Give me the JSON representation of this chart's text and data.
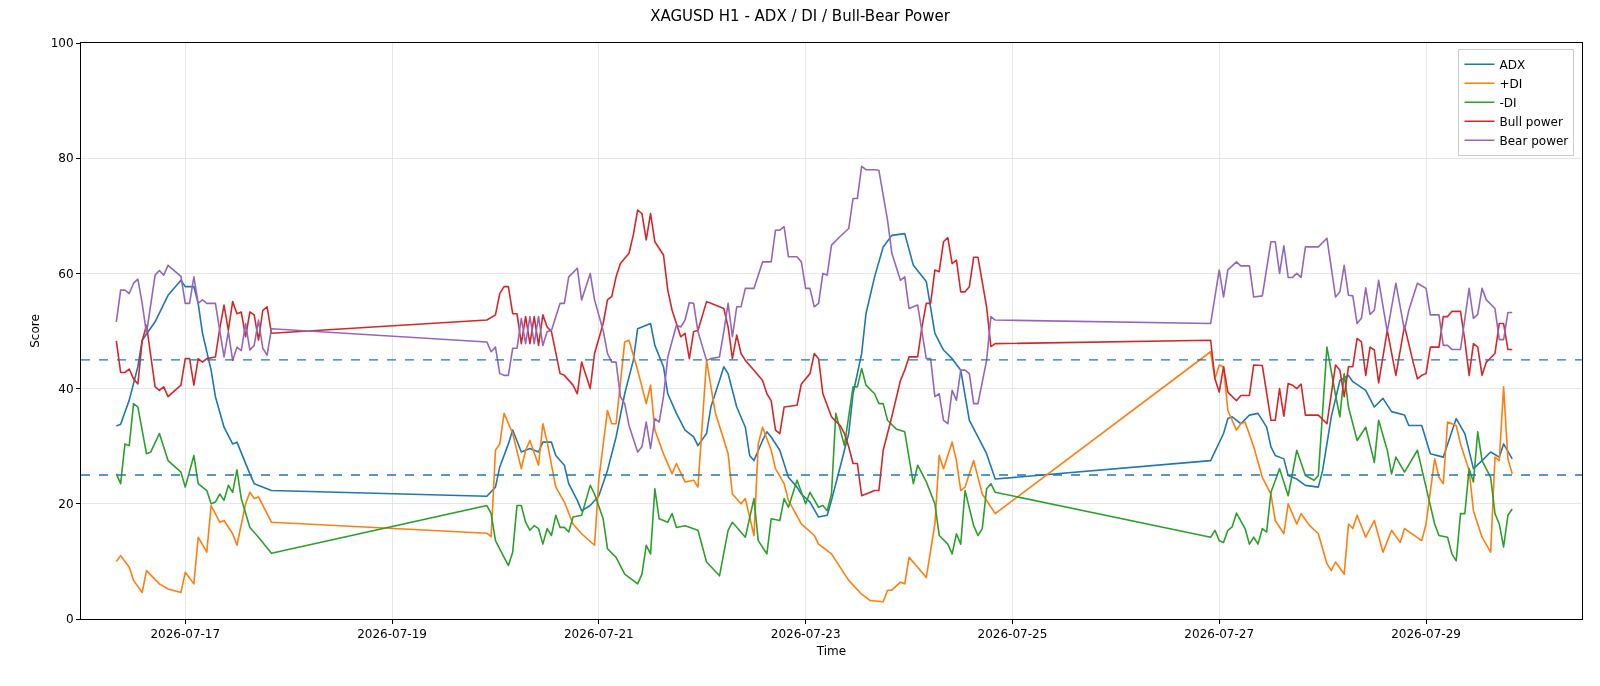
{
  "chart_data": {
    "type": "line",
    "title": "XAGUSD H1 - ADX / DI / Bull-Bear Power",
    "xlabel": "Time",
    "ylabel": "Score",
    "xlim": [
      "2026-07-15T23:48",
      "2026-07-30T12:12"
    ],
    "xticks": [
      "2026-07-17",
      "2026-07-19",
      "2026-07-21",
      "2026-07-23",
      "2026-07-25",
      "2026-07-27",
      "2026-07-29"
    ],
    "ylim": [
      0,
      100
    ],
    "yticks": [
      0,
      20,
      40,
      60,
      80,
      100
    ],
    "grid": true,
    "legend": "top right",
    "ref_lines": [
      {
        "axis": "y",
        "value": 45,
        "color": "#1f77b4",
        "line_style": "dashed"
      },
      {
        "axis": "y",
        "value": 25,
        "color": "#1f77b4",
        "line_style": "dashed"
      }
    ],
    "series": [
      {
        "name": "ADX",
        "color": "#1f77b4",
        "x": [
          "2026-07-16T08:00",
          "2026-07-16T09:00",
          "2026-07-16T11:00",
          "2026-07-16T13:00",
          "2026-07-16T14:00",
          "2026-07-16T17:00",
          "2026-07-16T20:00",
          "2026-07-16T23:00",
          "2026-07-17T00:00",
          "2026-07-17T02:00",
          "2026-07-17T03:00",
          "2026-07-17T04:00",
          "2026-07-17T06:00",
          "2026-07-17T07:00",
          "2026-07-17T09:00",
          "2026-07-17T11:00",
          "2026-07-17T12:00",
          "2026-07-17T15:00",
          "2026-07-17T16:00",
          "2026-07-17T20:00",
          "2026-07-19T22:00",
          "2026-07-20T00:00",
          "2026-07-20T01:00",
          "2026-07-20T03:00",
          "2026-07-20T04:00",
          "2026-07-20T06:00",
          "2026-07-20T08:00",
          "2026-07-20T10:00",
          "2026-07-20T11:00",
          "2026-07-20T13:00",
          "2026-07-20T14:00",
          "2026-07-20T16:00",
          "2026-07-20T17:00",
          "2026-07-20T19:00",
          "2026-07-20T20:00",
          "2026-07-20T22:00",
          "2026-07-21T00:00",
          "2026-07-21T02:00",
          "2026-07-21T04:00",
          "2026-07-21T06:00",
          "2026-07-21T08:00",
          "2026-07-21T09:00",
          "2026-07-21T11:00",
          "2026-07-21T12:00",
          "2026-07-21T13:00",
          "2026-07-21T15:00",
          "2026-07-21T16:00",
          "2026-07-21T18:00",
          "2026-07-21T20:00",
          "2026-07-21T22:00",
          "2026-07-21T23:00",
          "2026-07-22T01:00",
          "2026-07-22T02:00",
          "2026-07-22T04:00",
          "2026-07-22T05:00",
          "2026-07-22T06:00",
          "2026-07-22T08:00",
          "2026-07-22T10:00",
          "2026-07-22T11:00",
          "2026-07-22T12:00",
          "2026-07-22T14:00",
          "2026-07-22T15:00",
          "2026-07-22T16:00",
          "2026-07-22T18:00",
          "2026-07-22T20:00",
          "2026-07-22T22:00",
          "2026-07-22T23:00",
          "2026-07-23T01:00",
          "2026-07-23T03:00",
          "2026-07-23T05:00",
          "2026-07-23T06:00",
          "2026-07-23T08:00",
          "2026-07-23T10:00",
          "2026-07-23T11:00",
          "2026-07-23T13:00",
          "2026-07-23T14:00",
          "2026-07-23T16:00",
          "2026-07-23T18:00",
          "2026-07-23T20:00",
          "2026-07-23T23:00",
          "2026-07-24T01:00",
          "2026-07-24T04:00",
          "2026-07-24T06:00",
          "2026-07-24T08:00",
          "2026-07-24T10:00",
          "2026-07-24T12:00",
          "2026-07-24T14:00",
          "2026-07-24T16:00",
          "2026-07-24T18:00",
          "2026-07-24T20:00",
          "2026-07-26T22:00",
          "2026-07-27T01:00",
          "2026-07-27T02:00",
          "2026-07-27T03:00",
          "2026-07-27T05:00",
          "2026-07-27T07:00",
          "2026-07-27T09:00",
          "2026-07-27T11:00",
          "2026-07-27T12:00",
          "2026-07-27T13:00",
          "2026-07-27T15:00",
          "2026-07-27T16:00",
          "2026-07-27T18:00",
          "2026-07-27T20:00",
          "2026-07-27T23:00",
          "2026-07-28T00:00",
          "2026-07-28T02:00",
          "2026-07-28T04:00",
          "2026-07-28T06:00",
          "2026-07-28T07:00",
          "2026-07-28T10:00",
          "2026-07-28T12:00",
          "2026-07-28T14:00",
          "2026-07-28T16:00",
          "2026-07-28T19:00",
          "2026-07-28T20:00",
          "2026-07-28T23:00",
          "2026-07-29T01:00",
          "2026-07-29T04:00",
          "2026-07-29T07:00",
          "2026-07-29T09:00",
          "2026-07-29T11:00",
          "2026-07-29T13:00",
          "2026-07-29T15:00",
          "2026-07-29T17:00",
          "2026-07-29T18:00",
          "2026-07-29T20:00"
        ],
        "values": [
          33.5,
          33.8,
          38.0,
          43.8,
          48.4,
          51.6,
          56.2,
          58.8,
          57.7,
          57.7,
          54.8,
          49.6,
          43.2,
          38.6,
          33.3,
          30.4,
          30.7,
          25.2,
          23.5,
          22.3,
          21.3,
          22.9,
          26.4,
          30.4,
          32.8,
          29.0,
          29.6,
          29.0,
          30.7,
          30.7,
          28.4,
          26.7,
          23.5,
          20.6,
          18.8,
          19.7,
          21.4,
          25.8,
          31.6,
          39.1,
          44.9,
          50.4,
          51.0,
          51.3,
          47.5,
          43.8,
          39.1,
          35.7,
          32.8,
          31.6,
          30.1,
          32.2,
          36.8,
          41.4,
          43.8,
          42.6,
          36.8,
          33.3,
          28.4,
          27.5,
          31.0,
          32.5,
          31.6,
          29.3,
          24.6,
          22.9,
          21.7,
          20.3,
          17.7,
          18.0,
          20.6,
          26.4,
          32.2,
          39.1,
          46.1,
          53.0,
          59.4,
          64.6,
          66.6,
          66.9,
          61.4,
          58.6,
          49.6,
          46.7,
          45.2,
          43.2,
          34.5,
          31.6,
          28.7,
          24.3,
          27.5,
          32.2,
          34.8,
          35.1,
          33.9,
          35.4,
          35.7,
          33.3,
          29.9,
          28.4,
          27.8,
          24.9,
          24.3,
          23.2,
          22.9,
          25.8,
          35.1,
          41.4,
          42.3,
          41.2,
          39.7,
          36.8,
          38.3,
          36.0,
          35.4,
          33.6,
          33.6,
          28.7,
          28.1,
          34.8,
          32.2,
          26.1,
          27.5,
          29.0,
          28.1,
          30.4,
          27.8
        ]
      },
      {
        "name": "+DI",
        "color": "#ff7f0e",
        "x": [
          "2026-07-16T08:00",
          "2026-07-16T09:00",
          "2026-07-16T11:00",
          "2026-07-16T12:00",
          "2026-07-16T14:00",
          "2026-07-16T15:00",
          "2026-07-16T18:00",
          "2026-07-16T20:00",
          "2026-07-16T23:00",
          "2026-07-17T00:00",
          "2026-07-17T02:00",
          "2026-07-17T03:00",
          "2026-07-17T05:00",
          "2026-07-17T06:00",
          "2026-07-17T08:00",
          "2026-07-17T09:00",
          "2026-07-17T11:00",
          "2026-07-17T12:00",
          "2026-07-17T14:00",
          "2026-07-17T15:00",
          "2026-07-17T16:00",
          "2026-07-17T17:00",
          "2026-07-17T20:00",
          "2026-07-19T22:00",
          "2026-07-19T23:00",
          "2026-07-20T00:00",
          "2026-07-20T01:00",
          "2026-07-20T02:00",
          "2026-07-20T04:00",
          "2026-07-20T06:00",
          "2026-07-20T07:00",
          "2026-07-20T08:00",
          "2026-07-20T10:00",
          "2026-07-20T11:00",
          "2026-07-20T12:00",
          "2026-07-20T14:00",
          "2026-07-20T16:00",
          "2026-07-20T18:00",
          "2026-07-20T20:00",
          "2026-07-20T23:00",
          "2026-07-21T00:00",
          "2026-07-21T02:00",
          "2026-07-21T03:00",
          "2026-07-21T04:00",
          "2026-07-21T06:00",
          "2026-07-21T07:00",
          "2026-07-21T09:00",
          "2026-07-21T11:00",
          "2026-07-21T12:00",
          "2026-07-21T13:00",
          "2026-07-21T15:00",
          "2026-07-21T17:00",
          "2026-07-21T18:00",
          "2026-07-21T20:00",
          "2026-07-21T22:00",
          "2026-07-21T23:00",
          "2026-07-22T01:00",
          "2026-07-22T03:00",
          "2026-07-22T06:00",
          "2026-07-22T07:00",
          "2026-07-22T09:00",
          "2026-07-22T10:00",
          "2026-07-22T12:00",
          "2026-07-22T13:00",
          "2026-07-22T14:00",
          "2026-07-22T16:00",
          "2026-07-22T17:00",
          "2026-07-22T19:00",
          "2026-07-22T20:00",
          "2026-07-22T23:00",
          "2026-07-23T02:00",
          "2026-07-23T03:00",
          "2026-07-23T06:00",
          "2026-07-23T08:00",
          "2026-07-23T10:00",
          "2026-07-23T13:00",
          "2026-07-23T15:00",
          "2026-07-23T18:00",
          "2026-07-23T19:00",
          "2026-07-23T20:00",
          "2026-07-23T22:00",
          "2026-07-23T23:00",
          "2026-07-24T00:00",
          "2026-07-24T02:00",
          "2026-07-24T04:00",
          "2026-07-24T06:00",
          "2026-07-24T07:00",
          "2026-07-24T08:00",
          "2026-07-24T10:00",
          "2026-07-24T11:00",
          "2026-07-24T12:00",
          "2026-07-24T13:00",
          "2026-07-24T15:00",
          "2026-07-24T17:00",
          "2026-07-24T20:00",
          "2026-07-26T22:00",
          "2026-07-26T23:00",
          "2026-07-27T00:00",
          "2026-07-27T01:00",
          "2026-07-27T02:00",
          "2026-07-27T04:00",
          "2026-07-27T05:00",
          "2026-07-27T06:00",
          "2026-07-27T08:00",
          "2026-07-27T10:00",
          "2026-07-27T12:00",
          "2026-07-27T13:00",
          "2026-07-27T15:00",
          "2026-07-27T16:00",
          "2026-07-27T18:00",
          "2026-07-27T19:00",
          "2026-07-27T21:00",
          "2026-07-27T23:00",
          "2026-07-28T01:00",
          "2026-07-28T02:00",
          "2026-07-28T03:00",
          "2026-07-28T05:00",
          "2026-07-28T06:00",
          "2026-07-28T07:00",
          "2026-07-28T08:00",
          "2026-07-28T10:00",
          "2026-07-28T12:00",
          "2026-07-28T14:00",
          "2026-07-28T16:00",
          "2026-07-28T18:00",
          "2026-07-28T19:00",
          "2026-07-28T23:00",
          "2026-07-29T00:00",
          "2026-07-29T02:00",
          "2026-07-29T03:00",
          "2026-07-29T04:00",
          "2026-07-29T05:00",
          "2026-07-29T07:00",
          "2026-07-29T08:00",
          "2026-07-29T10:00",
          "2026-07-29T11:00",
          "2026-07-29T13:00",
          "2026-07-29T15:00",
          "2026-07-29T16:00",
          "2026-07-29T17:00",
          "2026-07-29T18:00",
          "2026-07-29T19:00",
          "2026-07-29T20:00"
        ],
        "values": [
          10.0,
          11.0,
          9.0,
          6.7,
          4.6,
          8.4,
          6.1,
          5.2,
          4.6,
          8.1,
          6.1,
          14.2,
          11.6,
          19.7,
          16.8,
          17.1,
          14.8,
          12.8,
          20.0,
          22.0,
          20.9,
          21.2,
          16.8,
          14.9,
          14.3,
          29.3,
          30.4,
          35.7,
          32.2,
          26.1,
          29.3,
          31.0,
          26.7,
          33.9,
          30.7,
          22.9,
          20.3,
          16.5,
          14.8,
          12.8,
          24.3,
          36.2,
          33.9,
          33.9,
          48.1,
          48.4,
          43.2,
          37.4,
          40.6,
          32.8,
          28.7,
          25.2,
          27.0,
          23.8,
          24.1,
          22.9,
          44.9,
          35.9,
          28.7,
          21.7,
          20.0,
          20.9,
          14.5,
          30.4,
          33.3,
          29.3,
          26.1,
          23.5,
          20.6,
          16.5,
          14.5,
          13.0,
          11.3,
          9.0,
          6.7,
          4.3,
          3.2,
          3.0,
          5.0,
          5.0,
          6.4,
          6.1,
          10.7,
          9.0,
          7.2,
          16.5,
          28.4,
          26.1,
          30.7,
          27.5,
          22.3,
          22.9,
          27.5,
          21.7,
          18.3,
          46.4,
          41.7,
          44.1,
          43.8,
          36.2,
          32.8,
          33.9,
          34.2,
          29.9,
          24.6,
          21.7,
          17.1,
          14.8,
          20.0,
          16.5,
          18.3,
          16.2,
          14.8,
          9.6,
          8.4,
          9.9,
          7.8,
          16.5,
          15.7,
          18.0,
          14.2,
          17.1,
          11.6,
          15.4,
          13.3,
          15.7,
          13.6,
          16.5,
          27.8,
          24.6,
          23.5,
          34.2,
          33.6,
          30.4,
          25.8,
          18.8,
          14.2,
          11.6,
          28.1,
          27.5,
          40.3,
          27.8,
          25.2
        ]
      },
      {
        "name": "-DI",
        "color": "#2ca02c",
        "x": [
          "2026-07-16T08:00",
          "2026-07-16T09:00",
          "2026-07-16T10:00",
          "2026-07-16T11:00",
          "2026-07-16T12:00",
          "2026-07-16T13:00",
          "2026-07-16T15:00",
          "2026-07-16T16:00",
          "2026-07-16T18:00",
          "2026-07-16T20:00",
          "2026-07-16T23:00",
          "2026-07-17T00:00",
          "2026-07-17T02:00",
          "2026-07-17T03:00",
          "2026-07-17T05:00",
          "2026-07-17T06:00",
          "2026-07-17T07:00",
          "2026-07-17T08:00",
          "2026-07-17T09:00",
          "2026-07-17T10:00",
          "2026-07-17T11:00",
          "2026-07-17T12:00",
          "2026-07-17T13:00",
          "2026-07-17T15:00",
          "2026-07-17T17:00",
          "2026-07-17T20:00",
          "2026-07-19T22:00",
          "2026-07-19T23:00",
          "2026-07-20T00:00",
          "2026-07-20T02:00",
          "2026-07-20T03:00",
          "2026-07-20T04:00",
          "2026-07-20T05:00",
          "2026-07-20T06:00",
          "2026-07-20T07:00",
          "2026-07-20T08:00",
          "2026-07-20T09:00",
          "2026-07-20T10:00",
          "2026-07-20T11:00",
          "2026-07-20T12:00",
          "2026-07-20T13:00",
          "2026-07-20T14:00",
          "2026-07-20T15:00",
          "2026-07-20T16:00",
          "2026-07-20T17:00",
          "2026-07-20T18:00",
          "2026-07-20T20:00",
          "2026-07-20T22:00",
          "2026-07-20T23:00",
          "2026-07-21T01:00",
          "2026-07-21T02:00",
          "2026-07-21T04:00",
          "2026-07-21T06:00",
          "2026-07-21T09:00",
          "2026-07-21T10:00",
          "2026-07-21T11:00",
          "2026-07-21T12:00",
          "2026-07-21T13:00",
          "2026-07-21T14:00",
          "2026-07-21T16:00",
          "2026-07-21T17:00",
          "2026-07-21T18:00",
          "2026-07-21T20:00",
          "2026-07-21T23:00",
          "2026-07-22T01:00",
          "2026-07-22T04:00",
          "2026-07-22T06:00",
          "2026-07-22T07:00",
          "2026-07-22T10:00",
          "2026-07-22T12:00",
          "2026-07-22T13:00",
          "2026-07-22T15:00",
          "2026-07-22T16:00",
          "2026-07-22T18:00",
          "2026-07-22T19:00",
          "2026-07-22T20:00",
          "2026-07-22T22:00",
          "2026-07-23T00:00",
          "2026-07-23T01:00",
          "2026-07-23T03:00",
          "2026-07-23T04:00",
          "2026-07-23T05:00",
          "2026-07-23T06:00",
          "2026-07-23T07:00",
          "2026-07-23T09:00",
          "2026-07-23T11:00",
          "2026-07-23T12:00",
          "2026-07-23T13:00",
          "2026-07-23T14:00",
          "2026-07-23T16:00",
          "2026-07-23T17:00",
          "2026-07-23T18:00",
          "2026-07-23T19:00",
          "2026-07-23T21:00",
          "2026-07-23T23:00",
          "2026-07-24T01:00",
          "2026-07-24T02:00",
          "2026-07-24T04:00",
          "2026-07-24T06:00",
          "2026-07-24T07:00",
          "2026-07-24T09:00",
          "2026-07-24T10:00",
          "2026-07-24T11:00",
          "2026-07-24T12:00",
          "2026-07-24T13:00",
          "2026-07-24T15:00",
          "2026-07-24T16:00",
          "2026-07-24T17:00",
          "2026-07-24T18:00",
          "2026-07-24T19:00",
          "2026-07-24T20:00",
          "2026-07-26T22:00",
          "2026-07-26T23:00",
          "2026-07-27T00:00",
          "2026-07-27T01:00",
          "2026-07-27T02:00",
          "2026-07-27T03:00",
          "2026-07-27T04:00",
          "2026-07-27T06:00",
          "2026-07-27T07:00",
          "2026-07-27T08:00",
          "2026-07-27T09:00",
          "2026-07-27T10:00",
          "2026-07-27T11:00",
          "2026-07-27T12:00",
          "2026-07-27T14:00",
          "2026-07-27T16:00",
          "2026-07-27T18:00",
          "2026-07-27T20:00",
          "2026-07-27T22:00",
          "2026-07-27T23:00",
          "2026-07-28T01:00",
          "2026-07-28T03:00",
          "2026-07-28T04:00",
          "2026-07-28T05:00",
          "2026-07-28T06:00",
          "2026-07-28T08:00",
          "2026-07-28T10:00",
          "2026-07-28T12:00",
          "2026-07-28T13:00",
          "2026-07-28T15:00",
          "2026-07-28T16:00",
          "2026-07-28T17:00",
          "2026-07-28T19:00",
          "2026-07-28T22:00",
          "2026-07-29T00:00",
          "2026-07-29T02:00",
          "2026-07-29T03:00",
          "2026-07-29T05:00",
          "2026-07-29T06:00",
          "2026-07-29T07:00",
          "2026-07-29T08:00",
          "2026-07-29T09:00",
          "2026-07-29T10:00",
          "2026-07-29T11:00",
          "2026-07-29T12:00",
          "2026-07-29T13:00",
          "2026-07-29T15:00",
          "2026-07-29T16:00",
          "2026-07-29T17:00",
          "2026-07-29T18:00",
          "2026-07-29T19:00",
          "2026-07-29T20:00"
        ],
        "values": [
          25.2,
          23.5,
          30.4,
          30.1,
          37.4,
          36.8,
          28.7,
          29.0,
          32.2,
          27.5,
          25.5,
          22.9,
          28.4,
          23.5,
          22.3,
          20.0,
          20.3,
          21.7,
          20.6,
          23.2,
          22.0,
          25.9,
          20.9,
          15.9,
          14.2,
          11.4,
          19.7,
          18.3,
          13.6,
          10.7,
          9.3,
          11.6,
          19.7,
          19.7,
          16.8,
          15.4,
          16.2,
          15.7,
          13.0,
          15.7,
          14.5,
          18.0,
          15.9,
          15.9,
          15.1,
          17.7,
          18.0,
          23.2,
          21.7,
          17.4,
          12.2,
          10.7,
          7.8,
          6.1,
          7.8,
          12.8,
          11.3,
          22.6,
          17.4,
          16.8,
          18.3,
          15.9,
          16.2,
          15.4,
          9.9,
          7.5,
          15.4,
          16.8,
          14.2,
          20.9,
          13.6,
          11.3,
          17.4,
          17.1,
          20.9,
          19.4,
          24.1,
          20.0,
          22.0,
          19.4,
          19.7,
          18.8,
          21.7,
          35.7,
          30.1,
          40.3,
          40.3,
          43.5,
          40.6,
          39.1,
          37.4,
          37.4,
          34.5,
          33.0,
          32.5,
          23.5,
          26.7,
          23.8,
          20.0,
          14.5,
          13.0,
          11.3,
          14.8,
          13.0,
          22.3,
          16.2,
          14.5,
          15.7,
          22.6,
          23.5,
          22.0,
          14.2,
          15.4,
          13.6,
          13.3,
          15.4,
          16.0,
          18.4,
          15.7,
          13.0,
          14.2,
          13.0,
          15.7,
          15.1,
          22.0,
          26.1,
          21.4,
          29.3,
          24.9,
          24.1,
          24.9,
          47.2,
          38.8,
          35.1,
          42.6,
          36.8,
          31.0,
          33.3,
          27.2,
          34.5,
          29.3,
          25.2,
          28.1,
          25.5,
          29.3,
          22.9,
          16.5,
          14.5,
          14.2,
          11.3,
          10.1,
          18.3,
          18.3,
          26.1,
          23.8,
          32.5,
          27.5,
          24.6,
          18.3,
          16.5,
          12.5,
          18.0,
          19.1
        ]
      },
      {
        "name": "Bull power",
        "color": "#d62728",
        "x": [
          "2026-07-16T08:00",
          "2026-07-16T09:00",
          "2026-07-16T10:00",
          "2026-07-16T11:00",
          "2026-07-16T12:00",
          "2026-07-16T13:00",
          "2026-07-16T14:00",
          "2026-07-16T15:00",
          "2026-07-16T17:00",
          "2026-07-16T18:00",
          "2026-07-16T19:00",
          "2026-07-16T20:00",
          "2026-07-16T23:00",
          "2026-07-17T00:00",
          "2026-07-17T01:00",
          "2026-07-17T02:00",
          "2026-07-17T03:00",
          "2026-07-17T04:00",
          "2026-07-17T05:00",
          "2026-07-17T07:00",
          "2026-07-17T08:00",
          "2026-07-17T09:00",
          "2026-07-17T10:00",
          "2026-07-17T11:00",
          "2026-07-17T12:00",
          "2026-07-17T13:00",
          "2026-07-17T14:00",
          "2026-07-17T15:00",
          "2026-07-17T16:00",
          "2026-07-17T17:00",
          "2026-07-17T18:00",
          "2026-07-17T19:00",
          "2026-07-17T20:00",
          "2026-07-19T22:00",
          "2026-07-20T00:00",
          "2026-07-20T01:00",
          "2026-07-20T02:00",
          "2026-07-20T03:00",
          "2026-07-20T04:00",
          "2026-07-20T05:00",
          "2026-07-20T06:00",
          "2026-07-20T07:00",
          "2026-07-20T08:00",
          "2026-07-20T09:00",
          "2026-07-20T10:00",
          "2026-07-20T11:00",
          "2026-07-20T12:00",
          "2026-07-20T13:00",
          "2026-07-20T15:00",
          "2026-07-20T16:00",
          "2026-07-20T18:00",
          "2026-07-20T19:00",
          "2026-07-20T20:00",
          "2026-07-20T22:00",
          "2026-07-20T23:00",
          "2026-07-21T01:00",
          "2026-07-21T02:00",
          "2026-07-21T03:00",
          "2026-07-21T04:00",
          "2026-07-21T05:00",
          "2026-07-21T07:00",
          "2026-07-21T08:00",
          "2026-07-21T09:00",
          "2026-07-21T10:00",
          "2026-07-21T11:00",
          "2026-07-21T12:00",
          "2026-07-21T13:00",
          "2026-07-21T15:00",
          "2026-07-21T16:00",
          "2026-07-21T17:00",
          "2026-07-21T19:00",
          "2026-07-21T20:00",
          "2026-07-21T21:00",
          "2026-07-21T22:00",
          "2026-07-21T23:00",
          "2026-07-22T01:00",
          "2026-07-22T02:00",
          "2026-07-22T04:00",
          "2026-07-22T05:00",
          "2026-07-22T06:00",
          "2026-07-22T07:00",
          "2026-07-22T08:00",
          "2026-07-22T09:00",
          "2026-07-22T10:00",
          "2026-07-22T12:00",
          "2026-07-22T14:00",
          "2026-07-22T15:00",
          "2026-07-22T16:00",
          "2026-07-22T17:00",
          "2026-07-22T18:00",
          "2026-07-22T19:00",
          "2026-07-22T22:00",
          "2026-07-22T23:00",
          "2026-07-23T01:00",
          "2026-07-23T02:00",
          "2026-07-23T03:00",
          "2026-07-23T04:00",
          "2026-07-23T06:00",
          "2026-07-23T08:00",
          "2026-07-23T09:00",
          "2026-07-23T10:00",
          "2026-07-23T11:00",
          "2026-07-23T12:00",
          "2026-07-23T13:00",
          "2026-07-23T16:00",
          "2026-07-23T17:00",
          "2026-07-23T18:00",
          "2026-07-23T20:00",
          "2026-07-23T22:00",
          "2026-07-23T23:00",
          "2026-07-24T00:00",
          "2026-07-24T02:00",
          "2026-07-24T03:00",
          "2026-07-24T04:00",
          "2026-07-24T05:00",
          "2026-07-24T06:00",
          "2026-07-24T07:00",
          "2026-07-24T08:00",
          "2026-07-24T09:00",
          "2026-07-24T10:00",
          "2026-07-24T11:00",
          "2026-07-24T12:00",
          "2026-07-24T13:00",
          "2026-07-24T14:00",
          "2026-07-24T15:00",
          "2026-07-24T16:00",
          "2026-07-24T18:00",
          "2026-07-24T19:00",
          "2026-07-24T20:00",
          "2026-07-26T22:00",
          "2026-07-26T23:00",
          "2026-07-27T00:00",
          "2026-07-27T01:00",
          "2026-07-27T02:00",
          "2026-07-27T04:00",
          "2026-07-27T05:00",
          "2026-07-27T07:00",
          "2026-07-27T08:00",
          "2026-07-27T10:00",
          "2026-07-27T12:00",
          "2026-07-27T13:00",
          "2026-07-27T14:00",
          "2026-07-27T15:00",
          "2026-07-27T16:00",
          "2026-07-27T17:00",
          "2026-07-27T18:00",
          "2026-07-27T19:00",
          "2026-07-27T20:00",
          "2026-07-27T23:00",
          "2026-07-28T01:00",
          "2026-07-28T03:00",
          "2026-07-28T04:00",
          "2026-07-28T05:00",
          "2026-07-28T06:00",
          "2026-07-28T07:00",
          "2026-07-28T08:00",
          "2026-07-28T09:00",
          "2026-07-28T10:00",
          "2026-07-28T11:00",
          "2026-07-28T12:00",
          "2026-07-28T13:00",
          "2026-07-28T15:00",
          "2026-07-28T17:00",
          "2026-07-28T19:00",
          "2026-07-28T21:00",
          "2026-07-28T22:00",
          "2026-07-28T23:00",
          "2026-07-29T00:00",
          "2026-07-29T01:00",
          "2026-07-29T03:00",
          "2026-07-29T04:00",
          "2026-07-29T05:00",
          "2026-07-29T06:00",
          "2026-07-29T08:00",
          "2026-07-29T09:00",
          "2026-07-29T10:00",
          "2026-07-29T11:00",
          "2026-07-29T12:00",
          "2026-07-29T13:00",
          "2026-07-29T14:00",
          "2026-07-29T16:00",
          "2026-07-29T17:00",
          "2026-07-29T18:00",
          "2026-07-29T19:00",
          "2026-07-29T20:00"
        ],
        "values": [
          48.3,
          42.8,
          42.8,
          43.4,
          41.7,
          40.8,
          48.3,
          51.0,
          40.3,
          39.7,
          40.3,
          38.6,
          40.6,
          45.2,
          45.2,
          40.6,
          45.2,
          44.6,
          45.2,
          45.5,
          50.4,
          54.5,
          50.1,
          55.1,
          53.0,
          53.3,
          49.0,
          53.3,
          52.8,
          48.4,
          53.6,
          54.2,
          49.6,
          51.9,
          52.8,
          56.5,
          57.7,
          57.7,
          53.0,
          53.0,
          47.8,
          52.5,
          47.8,
          52.5,
          47.5,
          52.8,
          50.7,
          49.9,
          42.6,
          42.3,
          40.6,
          39.1,
          44.6,
          40.0,
          46.1,
          51.3,
          55.4,
          56.0,
          59.4,
          61.7,
          63.5,
          66.7,
          71.0,
          70.4,
          65.8,
          70.4,
          65.5,
          63.2,
          57.1,
          53.6,
          49.0,
          49.6,
          45.2,
          49.9,
          50.1,
          55.1,
          54.8,
          54.2,
          53.9,
          50.7,
          45.2,
          49.3,
          46.1,
          44.9,
          43.2,
          41.4,
          39.1,
          37.9,
          32.8,
          32.2,
          36.8,
          37.1,
          40.8,
          42.6,
          46.1,
          45.2,
          39.1,
          35.1,
          33.6,
          32.2,
          29.9,
          27.0,
          27.0,
          21.4,
          22.3,
          22.3,
          29.3,
          35.1,
          41.4,
          43.2,
          45.5,
          45.5,
          50.7,
          54.8,
          54.8,
          60.6,
          60.3,
          65.5,
          66.2,
          61.7,
          62.3,
          56.8,
          56.8,
          57.7,
          62.8,
          62.8,
          54.2,
          47.3,
          47.8,
          48.4,
          41.7,
          39.4,
          43.8,
          39.4,
          37.9,
          38.8,
          38.8,
          44.1,
          44.0,
          34.5,
          34.5,
          40.0,
          35.2,
          40.9,
          40.6,
          40.0,
          40.8,
          35.4,
          35.4,
          33.9,
          44.1,
          43.2,
          38.6,
          43.8,
          43.8,
          48.7,
          48.1,
          42.3,
          47.2,
          46.7,
          41.0,
          50.1,
          42.3,
          50.9,
          44.6,
          41.7,
          42.3,
          42.6,
          47.2,
          47.2,
          52.5,
          52.5,
          53.4,
          53.4,
          48.4,
          42.3,
          47.8,
          47.2,
          42.3,
          44.6,
          46.1,
          51.3,
          51.3,
          46.8,
          46.8
        ]
      },
      {
        "name": "Bear power",
        "color": "#9467bd",
        "x": [
          "2026-07-16T08:00",
          "2026-07-16T09:00",
          "2026-07-16T10:00",
          "2026-07-16T11:00",
          "2026-07-16T12:00",
          "2026-07-16T13:00",
          "2026-07-16T14:00",
          "2026-07-16T15:00",
          "2026-07-16T17:00",
          "2026-07-16T18:00",
          "2026-07-16T19:00",
          "2026-07-16T20:00",
          "2026-07-16T23:00",
          "2026-07-17T00:00",
          "2026-07-17T01:00",
          "2026-07-17T02:00",
          "2026-07-17T03:00",
          "2026-07-17T04:00",
          "2026-07-17T05:00",
          "2026-07-17T07:00",
          "2026-07-17T08:00",
          "2026-07-17T09:00",
          "2026-07-17T10:00",
          "2026-07-17T11:00",
          "2026-07-17T12:00",
          "2026-07-17T13:00",
          "2026-07-17T14:00",
          "2026-07-17T15:00",
          "2026-07-17T16:00",
          "2026-07-17T17:00",
          "2026-07-17T18:00",
          "2026-07-17T19:00",
          "2026-07-17T20:00",
          "2026-07-19T22:00",
          "2026-07-19T23:00",
          "2026-07-20T00:00",
          "2026-07-20T01:00",
          "2026-07-20T02:00",
          "2026-07-20T03:00",
          "2026-07-20T04:00",
          "2026-07-20T05:00",
          "2026-07-20T06:00",
          "2026-07-20T07:00",
          "2026-07-20T08:00",
          "2026-07-20T09:00",
          "2026-07-20T10:00",
          "2026-07-20T11:00",
          "2026-07-20T12:00",
          "2026-07-20T13:00",
          "2026-07-20T15:00",
          "2026-07-20T16:00",
          "2026-07-20T17:00",
          "2026-07-20T19:00",
          "2026-07-20T20:00",
          "2026-07-20T22:00",
          "2026-07-20T23:00",
          "2026-07-21T01:00",
          "2026-07-21T02:00",
          "2026-07-21T03:00",
          "2026-07-21T04:00",
          "2026-07-21T05:00",
          "2026-07-21T06:00",
          "2026-07-21T07:00",
          "2026-07-21T09:00",
          "2026-07-21T10:00",
          "2026-07-21T11:00",
          "2026-07-21T12:00",
          "2026-07-21T13:00",
          "2026-07-21T14:00",
          "2026-07-21T15:00",
          "2026-07-21T16:00",
          "2026-07-21T18:00",
          "2026-07-21T19:00",
          "2026-07-21T20:00",
          "2026-07-21T21:00",
          "2026-07-21T22:00",
          "2026-07-21T23:00",
          "2026-07-22T01:00",
          "2026-07-22T02:00",
          "2026-07-22T04:00",
          "2026-07-22T05:00",
          "2026-07-22T06:00",
          "2026-07-22T07:00",
          "2026-07-22T08:00",
          "2026-07-22T09:00",
          "2026-07-22T10:00",
          "2026-07-22T12:00",
          "2026-07-22T14:00",
          "2026-07-22T16:00",
          "2026-07-22T17:00",
          "2026-07-22T18:00",
          "2026-07-22T19:00",
          "2026-07-22T20:00",
          "2026-07-22T22:00",
          "2026-07-22T23:00",
          "2026-07-23T00:00",
          "2026-07-23T01:00",
          "2026-07-23T02:00",
          "2026-07-23T03:00",
          "2026-07-23T04:00",
          "2026-07-23T05:00",
          "2026-07-23T06:00",
          "2026-07-23T08:00",
          "2026-07-23T10:00",
          "2026-07-23T11:00",
          "2026-07-23T12:00",
          "2026-07-23T13:00",
          "2026-07-23T14:00",
          "2026-07-23T16:00",
          "2026-07-23T17:00",
          "2026-07-23T19:00",
          "2026-07-23T20:00",
          "2026-07-23T22:00",
          "2026-07-23T23:00",
          "2026-07-24T00:00",
          "2026-07-24T02:00",
          "2026-07-24T03:00",
          "2026-07-24T04:00",
          "2026-07-24T05:00",
          "2026-07-24T06:00",
          "2026-07-24T07:00",
          "2026-07-24T08:00",
          "2026-07-24T09:00",
          "2026-07-24T10:00",
          "2026-07-24T11:00",
          "2026-07-24T12:00",
          "2026-07-24T13:00",
          "2026-07-24T14:00",
          "2026-07-24T15:00",
          "2026-07-24T16:00",
          "2026-07-24T18:00",
          "2026-07-24T19:00",
          "2026-07-24T20:00",
          "2026-07-26T22:00",
          "2026-07-27T00:00",
          "2026-07-27T01:00",
          "2026-07-27T02:00",
          "2026-07-27T04:00",
          "2026-07-27T05:00",
          "2026-07-27T07:00",
          "2026-07-27T08:00",
          "2026-07-27T10:00",
          "2026-07-27T12:00",
          "2026-07-27T13:00",
          "2026-07-27T14:00",
          "2026-07-27T15:00",
          "2026-07-27T16:00",
          "2026-07-27T17:00",
          "2026-07-27T18:00",
          "2026-07-27T19:00",
          "2026-07-27T20:00",
          "2026-07-27T23:00",
          "2026-07-28T01:00",
          "2026-07-28T03:00",
          "2026-07-28T04:00",
          "2026-07-28T05:00",
          "2026-07-28T06:00",
          "2026-07-28T07:00",
          "2026-07-28T08:00",
          "2026-07-28T09:00",
          "2026-07-28T10:00",
          "2026-07-28T11:00",
          "2026-07-28T12:00",
          "2026-07-28T13:00",
          "2026-07-28T15:00",
          "2026-07-28T17:00",
          "2026-07-28T19:00",
          "2026-07-28T20:00",
          "2026-07-28T22:00",
          "2026-07-29T00:00",
          "2026-07-29T01:00",
          "2026-07-29T03:00",
          "2026-07-29T04:00",
          "2026-07-29T05:00",
          "2026-07-29T06:00",
          "2026-07-29T08:00",
          "2026-07-29T10:00",
          "2026-07-29T11:00",
          "2026-07-29T12:00",
          "2026-07-29T13:00",
          "2026-07-29T14:00",
          "2026-07-29T16:00",
          "2026-07-29T17:00",
          "2026-07-29T18:00",
          "2026-07-29T19:00",
          "2026-07-29T20:00"
        ],
        "values": [
          51.6,
          57.1,
          57.1,
          56.5,
          58.3,
          59.0,
          54.8,
          49.6,
          59.7,
          60.5,
          59.7,
          61.4,
          59.5,
          54.8,
          54.8,
          59.4,
          54.8,
          55.4,
          54.8,
          54.8,
          50.1,
          45.5,
          49.9,
          44.9,
          47.2,
          46.6,
          51.3,
          46.7,
          47.5,
          51.9,
          47.0,
          45.8,
          50.4,
          48.1,
          46.4,
          47.2,
          42.6,
          42.3,
          42.3,
          47.0,
          47.0,
          52.2,
          47.8,
          52.5,
          47.8,
          52.5,
          47.5,
          49.9,
          50.1,
          54.8,
          54.8,
          59.4,
          60.9,
          55.4,
          60.0,
          55.4,
          50.1,
          46.1,
          44.6,
          44.6,
          38.6,
          37.4,
          33.6,
          29.0,
          29.9,
          34.2,
          29.6,
          34.8,
          34.2,
          38.6,
          45.5,
          51.0,
          50.7,
          51.9,
          54.9,
          54.8,
          49.9,
          44.9,
          45.2,
          45.5,
          49.9,
          54.8,
          49.0,
          54.2,
          54.2,
          57.4,
          57.4,
          62.0,
          62.0,
          67.5,
          67.5,
          68.1,
          62.9,
          62.9,
          62.0,
          57.4,
          57.4,
          54.2,
          54.8,
          60.0,
          59.7,
          64.9,
          66.4,
          67.8,
          73.0,
          73.0,
          78.6,
          78.0,
          78.0,
          77.9,
          69.3,
          63.5,
          58.8,
          59.4,
          53.9,
          54.5,
          49.9,
          45.2,
          45.2,
          38.6,
          39.1,
          34.5,
          33.9,
          39.7,
          38.0,
          43.2,
          43.2,
          42.6,
          37.4,
          37.4,
          44.9,
          52.5,
          51.9,
          51.3,
          60.6,
          55.9,
          60.6,
          62.0,
          61.3,
          61.3,
          55.9,
          56.1,
          65.5,
          65.5,
          60.0,
          64.8,
          59.3,
          59.3,
          60.0,
          59.3,
          64.6,
          64.6,
          66.1,
          55.9,
          56.8,
          61.4,
          56.2,
          56.1,
          51.3,
          52.2,
          57.5,
          52.9,
          53.6,
          58.8,
          49.9,
          58.3,
          50.1,
          53.6,
          58.3,
          57.4,
          52.8,
          52.8,
          47.5,
          47.5,
          46.8,
          46.8,
          57.4,
          52.2,
          52.9,
          57.4,
          55.4,
          53.9,
          48.5,
          48.5,
          53.2,
          53.2
        ]
      }
    ]
  }
}
